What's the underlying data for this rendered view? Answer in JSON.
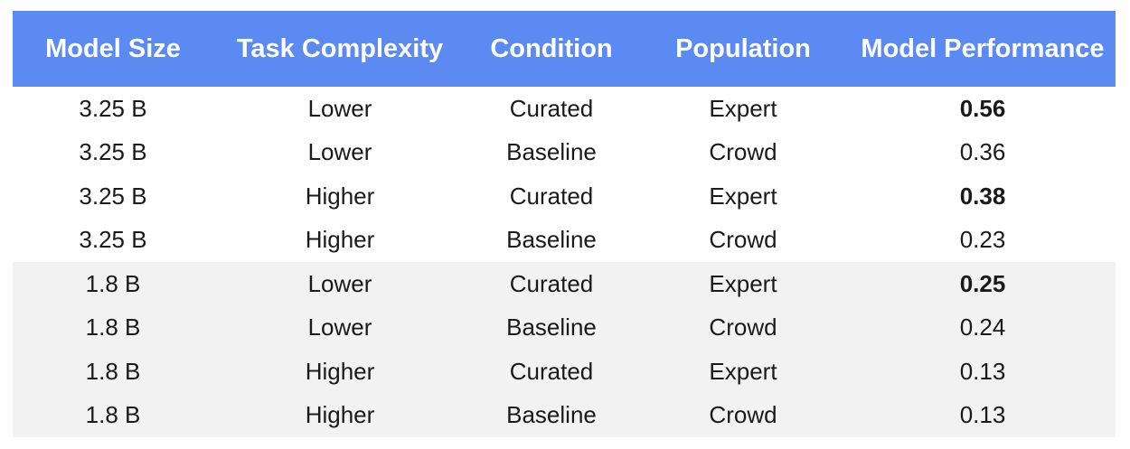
{
  "chart_data": {
    "type": "table",
    "columns": [
      "Model Size",
      "Task Complexity",
      "Condition",
      "Population",
      "Model Performance"
    ],
    "rows": [
      {
        "model_size": "3.25 B",
        "task_complexity": "Lower",
        "condition": "Curated",
        "population": "Expert",
        "performance": "0.56",
        "bold": true,
        "shaded": false
      },
      {
        "model_size": "3.25 B",
        "task_complexity": "Lower",
        "condition": "Baseline",
        "population": "Crowd",
        "performance": "0.36",
        "bold": false,
        "shaded": false
      },
      {
        "model_size": "3.25 B",
        "task_complexity": "Higher",
        "condition": "Curated",
        "population": "Expert",
        "performance": "0.38",
        "bold": true,
        "shaded": false
      },
      {
        "model_size": "3.25 B",
        "task_complexity": "Higher",
        "condition": "Baseline",
        "population": "Crowd",
        "performance": "0.23",
        "bold": false,
        "shaded": false
      },
      {
        "model_size": "1.8 B",
        "task_complexity": "Lower",
        "condition": "Curated",
        "population": "Expert",
        "performance": "0.25",
        "bold": true,
        "shaded": true
      },
      {
        "model_size": "1.8 B",
        "task_complexity": "Lower",
        "condition": "Baseline",
        "population": "Crowd",
        "performance": "0.24",
        "bold": false,
        "shaded": true
      },
      {
        "model_size": "1.8 B",
        "task_complexity": "Higher",
        "condition": "Curated",
        "population": "Expert",
        "performance": "0.13",
        "bold": false,
        "shaded": true
      },
      {
        "model_size": "1.8 B",
        "task_complexity": "Higher",
        "condition": "Baseline",
        "population": "Crowd",
        "performance": "0.13",
        "bold": false,
        "shaded": true
      }
    ]
  },
  "colors": {
    "header_bg": "#5a8af2",
    "header_text": "#ffffff",
    "shaded_row": "#f2f2f2"
  }
}
